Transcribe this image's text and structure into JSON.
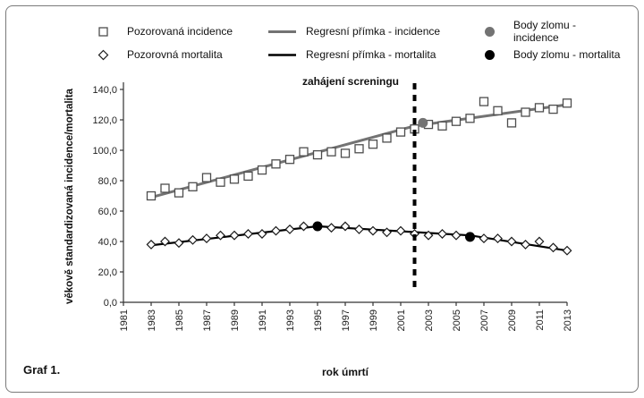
{
  "frame": {
    "caption": "Graf 1."
  },
  "legend": {
    "items": [
      {
        "label": "Pozorovaná incidence",
        "marker": "open-square"
      },
      {
        "label": "Pozorovná mortalita",
        "marker": "open-diamond"
      },
      {
        "label": "Regresní přímka - incidence",
        "marker": "gray-line"
      },
      {
        "label": "Regresní přímka - mortalita",
        "marker": "black-line"
      },
      {
        "label": "Body zlomu - incidence",
        "marker": "gray-dot"
      },
      {
        "label": "Body zlomu - mortalita",
        "marker": "black-dot"
      }
    ]
  },
  "chart_data": {
    "type": "scatter",
    "title": "",
    "xlabel": "rok úmrtí",
    "ylabel": "věkově standardizovaná incidence/mortalita",
    "annotation": {
      "text": "zahájení screningu",
      "x": 2002
    },
    "xlim": [
      1981,
      2013
    ],
    "ylim": [
      0,
      140
    ],
    "x_ticks": [
      1981,
      1983,
      1985,
      1987,
      1989,
      1991,
      1993,
      1995,
      1997,
      1999,
      2001,
      2003,
      2005,
      2007,
      2009,
      2011,
      2013
    ],
    "y_ticks": [
      0,
      20,
      40,
      60,
      80,
      100,
      120,
      140
    ],
    "y_tick_labels": [
      "0,0",
      "20,0",
      "40,0",
      "60,0",
      "80,0",
      "100,0",
      "120,0",
      "140,0"
    ],
    "grid": false,
    "legend_position": "top",
    "colors": {
      "gray": "#737373",
      "black": "#000000",
      "marker_square": "#4d4d4d",
      "marker_diamond": "#1a1a1a"
    },
    "series": [
      {
        "name": "Pozorovaná incidence",
        "marker": "open-square",
        "points": [
          [
            1983,
            70
          ],
          [
            1984,
            75
          ],
          [
            1985,
            72
          ],
          [
            1986,
            76
          ],
          [
            1987,
            82
          ],
          [
            1988,
            79
          ],
          [
            1989,
            81
          ],
          [
            1990,
            83
          ],
          [
            1991,
            87
          ],
          [
            1992,
            91
          ],
          [
            1993,
            94
          ],
          [
            1994,
            99
          ],
          [
            1995,
            97
          ],
          [
            1996,
            99
          ],
          [
            1997,
            98
          ],
          [
            1998,
            101
          ],
          [
            1999,
            104
          ],
          [
            2000,
            108
          ],
          [
            2001,
            112
          ],
          [
            2002,
            114
          ],
          [
            2003,
            117
          ],
          [
            2004,
            116
          ],
          [
            2005,
            119
          ],
          [
            2006,
            121
          ],
          [
            2007,
            132
          ],
          [
            2008,
            126
          ],
          [
            2009,
            118
          ],
          [
            2010,
            125
          ],
          [
            2011,
            128
          ],
          [
            2012,
            127
          ],
          [
            2013,
            131
          ]
        ]
      },
      {
        "name": "Pozorovná mortalita",
        "marker": "open-diamond",
        "points": [
          [
            1983,
            38
          ],
          [
            1984,
            40
          ],
          [
            1985,
            39
          ],
          [
            1986,
            41
          ],
          [
            1987,
            42
          ],
          [
            1988,
            44
          ],
          [
            1989,
            44
          ],
          [
            1990,
            45
          ],
          [
            1991,
            45
          ],
          [
            1992,
            47
          ],
          [
            1993,
            48
          ],
          [
            1994,
            50
          ],
          [
            1995,
            50
          ],
          [
            1996,
            49
          ],
          [
            1997,
            50
          ],
          [
            1998,
            48
          ],
          [
            1999,
            47
          ],
          [
            2000,
            46
          ],
          [
            2001,
            47
          ],
          [
            2002,
            45
          ],
          [
            2003,
            44
          ],
          [
            2004,
            45
          ],
          [
            2005,
            44
          ],
          [
            2006,
            43
          ],
          [
            2007,
            42
          ],
          [
            2008,
            42
          ],
          [
            2009,
            40
          ],
          [
            2010,
            38
          ],
          [
            2011,
            40
          ],
          [
            2012,
            36
          ],
          [
            2013,
            34
          ]
        ]
      }
    ],
    "regressions": [
      {
        "name": "Regresní přímka - incidence",
        "color_key": "gray",
        "width": 3,
        "points": [
          [
            1983,
            69
          ],
          [
            2002,
            116
          ],
          [
            2013,
            130
          ]
        ]
      },
      {
        "name": "Regresní přímka - mortalita",
        "color_key": "black",
        "width": 2.2,
        "points": [
          [
            1983,
            37.5
          ],
          [
            1995,
            50
          ],
          [
            2006,
            44
          ],
          [
            2013,
            34
          ]
        ]
      }
    ],
    "breakpoints": [
      {
        "name": "Body zlomu - incidence",
        "color_key": "gray",
        "points": [
          [
            2002.6,
            118
          ]
        ]
      },
      {
        "name": "Body zlomu - mortalita",
        "color_key": "black",
        "points": [
          [
            1995,
            50
          ],
          [
            2006,
            43
          ]
        ]
      }
    ],
    "screening_line": {
      "x": 2002,
      "dash": "7 6",
      "width": 4
    }
  }
}
